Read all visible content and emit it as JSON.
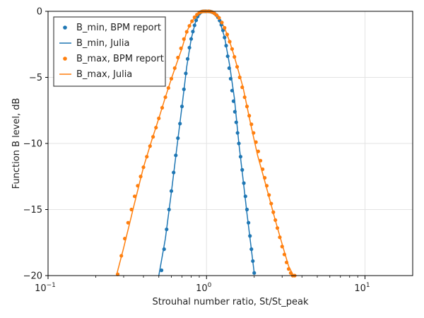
{
  "chart_data": {
    "type": "scatter",
    "xlabel": "Strouhal number ratio, St/St_peak",
    "ylabel": "Function B level, dB",
    "xscale": "log",
    "xlim": [
      0.1,
      20
    ],
    "ylim": [
      -20,
      0
    ],
    "x_ticks": [
      0.1,
      1,
      10
    ],
    "x_tick_labels": [
      "10^-1",
      "10^0",
      "10^1"
    ],
    "y_ticks": [
      0,
      -5,
      -10,
      -15,
      -20
    ],
    "y_tick_labels": [
      "0",
      "−5",
      "−10",
      "−15",
      "−20"
    ],
    "grid": true,
    "legend_position": "top-left",
    "colors": {
      "blue": "#1f77b4",
      "orange": "#ff7f0e"
    },
    "legend": [
      {
        "label": "B_min, BPM report",
        "style": "marker",
        "color": "#1f77b4"
      },
      {
        "label": "B_min, Julia",
        "style": "line",
        "color": "#1f77b4"
      },
      {
        "label": "B_max, BPM report",
        "style": "marker",
        "color": "#ff7f0e"
      },
      {
        "label": "B_max, Julia",
        "style": "line",
        "color": "#ff7f0e"
      }
    ],
    "series": [
      {
        "name": "B_min, BPM report",
        "kind": "scatter",
        "color": "#1f77b4",
        "x": [
          0.52,
          0.54,
          0.56,
          0.58,
          0.6,
          0.62,
          0.64,
          0.66,
          0.68,
          0.7,
          0.72,
          0.74,
          0.76,
          0.78,
          0.8,
          0.82,
          0.84,
          0.86,
          0.88,
          0.9,
          0.92,
          0.94,
          0.96,
          0.98,
          1.0,
          1.03,
          1.06,
          1.09,
          1.12,
          1.15,
          1.18,
          1.21,
          1.24,
          1.27,
          1.3,
          1.33,
          1.36,
          1.39,
          1.42,
          1.45,
          1.48,
          1.51,
          1.54,
          1.57,
          1.6,
          1.64,
          1.68,
          1.72,
          1.76,
          1.8,
          1.84,
          1.88,
          1.92,
          1.96,
          2.0
        ],
        "y": [
          -19.6,
          -18.0,
          -16.5,
          -15.0,
          -13.6,
          -12.2,
          -10.9,
          -9.6,
          -8.5,
          -7.2,
          -5.9,
          -4.7,
          -3.6,
          -2.75,
          -2.09,
          -1.53,
          -1.06,
          -0.68,
          -0.39,
          -0.18,
          -0.06,
          -0.01,
          0,
          0,
          0,
          0,
          -0.02,
          -0.07,
          -0.15,
          -0.27,
          -0.45,
          -0.7,
          -1.02,
          -1.44,
          -1.98,
          -2.6,
          -3.4,
          -4.3,
          -5.1,
          -6.0,
          -6.8,
          -7.6,
          -8.4,
          -9.2,
          -10.0,
          -11.0,
          -12.0,
          -13.0,
          -14.0,
          -15.0,
          -16.0,
          -17.0,
          -18.0,
          -18.9,
          -19.8
        ]
      },
      {
        "name": "B_min, Julia",
        "kind": "line",
        "color": "#1f77b4",
        "x": [
          0.5,
          0.55,
          0.6,
          0.65,
          0.7,
          0.75,
          0.8,
          0.85,
          0.9,
          0.95,
          1.0,
          1.05,
          1.1,
          1.2,
          1.3,
          1.4,
          1.5,
          1.6,
          1.7,
          1.8,
          1.9,
          2.0
        ],
        "y": [
          -20.0,
          -17.2,
          -13.7,
          -10.3,
          -7.2,
          -4.2,
          -2.1,
          -0.85,
          -0.18,
          0,
          0,
          -0.04,
          -0.11,
          -0.62,
          -1.96,
          -4.1,
          -6.6,
          -10.0,
          -12.7,
          -15.3,
          -17.6,
          -19.8
        ]
      },
      {
        "name": "B_max, BPM report",
        "kind": "scatter",
        "color": "#ff7f0e",
        "x": [
          0.275,
          0.29,
          0.305,
          0.32,
          0.336,
          0.352,
          0.368,
          0.384,
          0.4,
          0.42,
          0.44,
          0.46,
          0.48,
          0.5,
          0.525,
          0.55,
          0.575,
          0.6,
          0.63,
          0.66,
          0.69,
          0.72,
          0.75,
          0.78,
          0.81,
          0.84,
          0.87,
          0.9,
          0.93,
          0.96,
          1.0,
          1.04,
          1.08,
          1.12,
          1.16,
          1.2,
          1.25,
          1.3,
          1.35,
          1.4,
          1.45,
          1.5,
          1.56,
          1.62,
          1.68,
          1.74,
          1.8,
          1.86,
          1.92,
          1.98,
          2.05,
          2.12,
          2.19,
          2.26,
          2.33,
          2.4,
          2.48,
          2.56,
          2.64,
          2.72,
          2.8,
          2.9,
          3.0,
          3.1,
          3.2,
          3.3,
          3.4,
          3.5,
          3.6
        ],
        "y": [
          -19.9,
          -18.5,
          -17.2,
          -16.0,
          -15.0,
          -14.0,
          -13.2,
          -12.5,
          -11.8,
          -11.0,
          -10.2,
          -9.5,
          -8.8,
          -8.1,
          -7.3,
          -6.5,
          -5.8,
          -5.1,
          -4.3,
          -3.5,
          -2.8,
          -2.1,
          -1.55,
          -1.1,
          -0.75,
          -0.45,
          -0.25,
          -0.1,
          -0.03,
          0,
          0,
          0,
          -0.05,
          -0.15,
          -0.3,
          -0.5,
          -0.85,
          -1.25,
          -1.75,
          -2.3,
          -2.85,
          -3.45,
          -4.2,
          -5.0,
          -5.75,
          -6.5,
          -7.2,
          -7.9,
          -8.55,
          -9.2,
          -9.9,
          -10.6,
          -11.3,
          -11.95,
          -12.6,
          -13.2,
          -13.9,
          -14.55,
          -15.2,
          -15.8,
          -16.4,
          -17.1,
          -17.8,
          -18.4,
          -19.0,
          -19.5,
          -19.8,
          -20.0,
          -20.0
        ]
      },
      {
        "name": "B_max, Julia",
        "kind": "line",
        "color": "#ff7f0e",
        "x": [
          0.27,
          0.3,
          0.35,
          0.4,
          0.45,
          0.5,
          0.55,
          0.6,
          0.65,
          0.7,
          0.75,
          0.8,
          0.85,
          0.9,
          0.95,
          1.0,
          1.05,
          1.1,
          1.2,
          1.3,
          1.4,
          1.5,
          1.7,
          1.9,
          2.1,
          2.3,
          2.5,
          2.7,
          2.9,
          3.1,
          3.3,
          3.5,
          3.6
        ],
        "y": [
          -20.0,
          -17.9,
          -14.6,
          -11.8,
          -9.8,
          -8.1,
          -6.5,
          -5.1,
          -3.9,
          -2.8,
          -1.55,
          -0.85,
          -0.4,
          -0.1,
          0,
          0,
          -0.02,
          -0.1,
          -0.5,
          -1.25,
          -2.3,
          -3.45,
          -5.75,
          -8.55,
          -10.9,
          -12.6,
          -14.2,
          -15.7,
          -17.0,
          -18.2,
          -19.3,
          -19.9,
          -20.0
        ]
      }
    ]
  }
}
